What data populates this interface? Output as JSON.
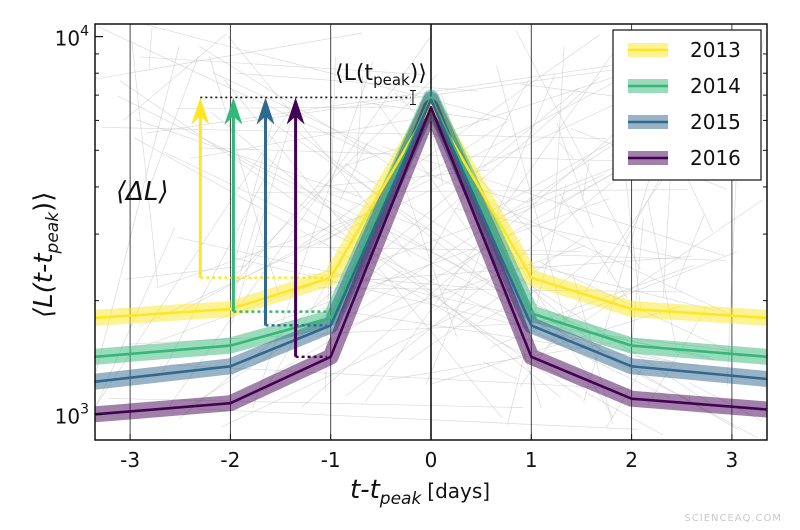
{
  "chart_data": {
    "type": "line",
    "xlabel_main": "t-t",
    "xlabel_sub": "peak",
    "xlabel_unit": "[days]",
    "ylabel": "⟨L(t-t",
    "ylabel_sub": "peak",
    "ylabel_close": ")⟩",
    "x_ticks": [
      -3,
      -2,
      -1,
      0,
      1,
      2,
      3
    ],
    "y_ticks": [
      {
        "value": 1000,
        "base": "10",
        "exp": "3"
      },
      {
        "value": 10000,
        "base": "10",
        "exp": "4"
      }
    ],
    "xlim": [
      -3.35,
      3.35
    ],
    "ylim_log": [
      855,
      10800
    ],
    "y_scale": "log",
    "x": [
      -3.35,
      -2,
      -1,
      0,
      1,
      2,
      3.35
    ],
    "series": [
      {
        "name": "2013",
        "color": "#fde725",
        "values": [
          1800,
          1900,
          2300,
          6600,
          2300,
          1900,
          1800
        ]
      },
      {
        "name": "2014",
        "color": "#35b779",
        "values": [
          1420,
          1520,
          1800,
          6900,
          1850,
          1520,
          1420
        ]
      },
      {
        "name": "2015",
        "color": "#31688e",
        "values": [
          1220,
          1340,
          1720,
          6800,
          1720,
          1340,
          1240
        ]
      },
      {
        "name": "2016",
        "color": "#440154",
        "values": [
          1000,
          1070,
          1420,
          6500,
          1420,
          1100,
          1030
        ]
      }
    ],
    "arrows": [
      {
        "series": "2013",
        "x": -2.3,
        "y_from": 2300,
        "y_to": 6900
      },
      {
        "series": "2014",
        "x": -1.97,
        "y_from": 1870,
        "y_to": 6900
      },
      {
        "series": "2015",
        "x": -1.65,
        "y_from": 1720,
        "y_to": 6900
      },
      {
        "series": "2016",
        "x": -1.35,
        "y_from": 1420,
        "y_to": 6900
      }
    ],
    "peak_level": 6900,
    "annotation_peak": "⟨L(t",
    "annotation_peak_sub": "peak",
    "annotation_peak_close": ")⟩",
    "annotation_delta": "⟨ΔL⟩",
    "legend_position": "top-right",
    "grid": "vertical lines at integer days",
    "background_traces": "many faint grey individual trajectories"
  },
  "watermark": "SCIENCEAQ.COM"
}
